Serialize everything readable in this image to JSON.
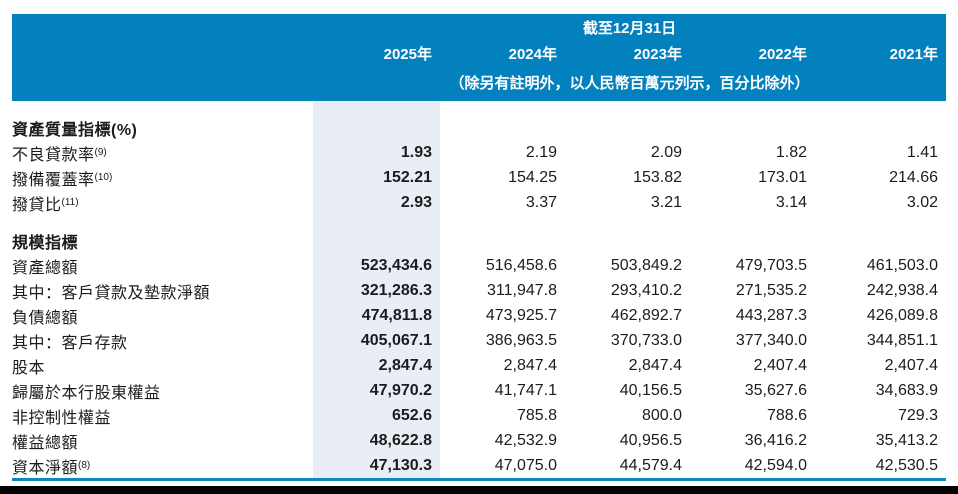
{
  "colors": {
    "header-blue": "#0381bf",
    "highlight-blue": "#e9eef6",
    "rule-blue": "#0e86c6",
    "text": "#1c1c1c",
    "band-text": "#ffffff",
    "black-bar": "#000000"
  },
  "header": {
    "as_of_label": "截至12月31日",
    "years": [
      "2025年",
      "2024年",
      "2023年",
      "2022年",
      "2021年"
    ],
    "unit_note": "（除另有註明外，以人民幣百萬元列示，百分比除外）"
  },
  "sections": [
    {
      "title": "資產質量指標(%)",
      "rows": [
        {
          "label": "不良貸款率",
          "sup": "(9)",
          "values": [
            "1.93",
            "2.19",
            "2.09",
            "1.82",
            "1.41"
          ]
        },
        {
          "label": "撥備覆蓋率",
          "sup": "(10)",
          "values": [
            "152.21",
            "154.25",
            "153.82",
            "173.01",
            "214.66"
          ]
        },
        {
          "label": "撥貸比",
          "sup": "(11)",
          "values": [
            "2.93",
            "3.37",
            "3.21",
            "3.14",
            "3.02"
          ]
        }
      ]
    },
    {
      "title": "規模指標",
      "rows": [
        {
          "label": "資產總額",
          "sup": "",
          "values": [
            "523,434.6",
            "516,458.6",
            "503,849.2",
            "479,703.5",
            "461,503.0"
          ]
        },
        {
          "label": "其中：客戶貸款及墊款淨額",
          "sup": "",
          "values": [
            "321,286.3",
            "311,947.8",
            "293,410.2",
            "271,535.2",
            "242,938.4"
          ]
        },
        {
          "label": "負債總額",
          "sup": "",
          "values": [
            "474,811.8",
            "473,925.7",
            "462,892.7",
            "443,287.3",
            "426,089.8"
          ]
        },
        {
          "label": "其中：客戶存款",
          "sup": "",
          "values": [
            "405,067.1",
            "386,963.5",
            "370,733.0",
            "377,340.0",
            "344,851.1"
          ]
        },
        {
          "label": "股本",
          "sup": "",
          "values": [
            "2,847.4",
            "2,847.4",
            "2,847.4",
            "2,407.4",
            "2,407.4"
          ]
        },
        {
          "label": "歸屬於本行股東權益",
          "sup": "",
          "values": [
            "47,970.2",
            "41,747.1",
            "40,156.5",
            "35,627.6",
            "34,683.9"
          ]
        },
        {
          "label": "非控制性權益",
          "sup": "",
          "values": [
            "652.6",
            "785.8",
            "800.0",
            "788.6",
            "729.3"
          ]
        },
        {
          "label": "權益總額",
          "sup": "",
          "values": [
            "48,622.8",
            "42,532.9",
            "40,956.5",
            "36,416.2",
            "35,413.2"
          ]
        },
        {
          "label": "資本淨額",
          "sup": "(8)",
          "values": [
            "47,130.3",
            "47,075.0",
            "44,579.4",
            "42,594.0",
            "42,530.5"
          ]
        }
      ]
    }
  ]
}
